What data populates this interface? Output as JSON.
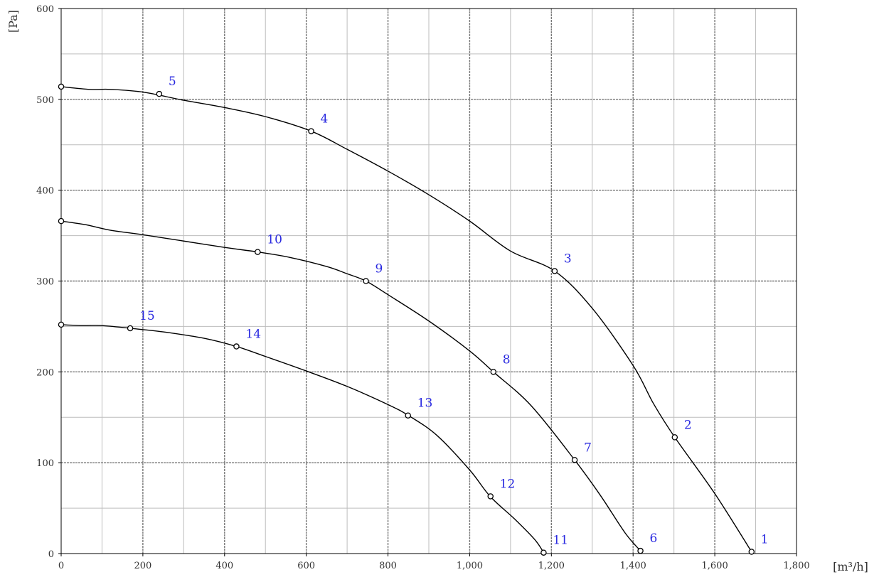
{
  "chart_data": {
    "type": "line",
    "xlabel": "[m³/h]",
    "ylabel": "[Pa]",
    "xlim": [
      0,
      1800
    ],
    "ylim": [
      0,
      600
    ],
    "x_major_ticks": [
      0,
      200,
      400,
      600,
      800,
      1000,
      1200,
      1400,
      1600,
      1800
    ],
    "x_tick_labels": [
      "0",
      "200",
      "400",
      "600",
      "800",
      "1,000",
      "1,200",
      "1,400",
      "1,600",
      "1,800"
    ],
    "y_major_ticks": [
      0,
      100,
      200,
      300,
      400,
      500,
      600
    ],
    "y_tick_labels": [
      "0",
      "100",
      "200",
      "300",
      "400",
      "500",
      "600"
    ],
    "grid": true,
    "series": [
      {
        "curve": [
          [
            0,
            514
          ],
          [
            70,
            511
          ],
          [
            120,
            511
          ],
          [
            200,
            508
          ],
          [
            300,
            499
          ],
          [
            400,
            491
          ],
          [
            500,
            481
          ],
          [
            612,
            465
          ],
          [
            700,
            445
          ],
          [
            800,
            421
          ],
          [
            900,
            395
          ],
          [
            1000,
            366
          ],
          [
            1100,
            333
          ],
          [
            1208,
            311
          ],
          [
            1300,
            270
          ],
          [
            1400,
            207
          ],
          [
            1450,
            165
          ],
          [
            1502,
            128
          ],
          [
            1600,
            66
          ],
          [
            1690,
            2
          ]
        ],
        "markers": [
          {
            "label": "1",
            "x": 1690,
            "y": 2
          },
          {
            "label": "2",
            "x": 1502,
            "y": 128
          },
          {
            "label": "3",
            "x": 1208,
            "y": 311
          },
          {
            "label": "4",
            "x": 612,
            "y": 465
          },
          {
            "label": "5",
            "x": 240,
            "y": 506
          }
        ],
        "start_marker": {
          "x": 0,
          "y": 514
        }
      },
      {
        "curve": [
          [
            0,
            366
          ],
          [
            60,
            362
          ],
          [
            120,
            356
          ],
          [
            200,
            351
          ],
          [
            300,
            344
          ],
          [
            400,
            337
          ],
          [
            481,
            332
          ],
          [
            560,
            326
          ],
          [
            650,
            316
          ],
          [
            700,
            308
          ],
          [
            746,
            300
          ],
          [
            800,
            285
          ],
          [
            900,
            256
          ],
          [
            1000,
            223
          ],
          [
            1058,
            200
          ],
          [
            1150,
            163
          ],
          [
            1257,
            103
          ],
          [
            1320,
            64
          ],
          [
            1380,
            23
          ],
          [
            1418,
            3
          ]
        ],
        "markers": [
          {
            "label": "6",
            "x": 1418,
            "y": 3
          },
          {
            "label": "7",
            "x": 1257,
            "y": 103
          },
          {
            "label": "8",
            "x": 1058,
            "y": 200
          },
          {
            "label": "9",
            "x": 746,
            "y": 300
          },
          {
            "label": "10",
            "x": 481,
            "y": 332
          }
        ],
        "start_marker": {
          "x": 0,
          "y": 366
        }
      },
      {
        "curve": [
          [
            0,
            252
          ],
          [
            50,
            251
          ],
          [
            100,
            251
          ],
          [
            169,
            248
          ],
          [
            250,
            244
          ],
          [
            350,
            237
          ],
          [
            429,
            228
          ],
          [
            500,
            217
          ],
          [
            600,
            201
          ],
          [
            700,
            184
          ],
          [
            800,
            164
          ],
          [
            850,
            152
          ],
          [
            920,
            130
          ],
          [
            1000,
            92
          ],
          [
            1050,
            63
          ],
          [
            1110,
            38
          ],
          [
            1160,
            15
          ],
          [
            1181,
            1
          ]
        ],
        "markers": [
          {
            "label": "11",
            "x": 1181,
            "y": 1
          },
          {
            "label": "12",
            "x": 1051,
            "y": 63
          },
          {
            "label": "13",
            "x": 849,
            "y": 152
          },
          {
            "label": "14",
            "x": 429,
            "y": 228
          },
          {
            "label": "15",
            "x": 169,
            "y": 248
          }
        ],
        "start_marker": {
          "x": 0,
          "y": 252
        }
      }
    ],
    "colors": {
      "curve": "#000000",
      "marker": "#000000",
      "point_label": "#2929e0",
      "grid_major": "#7a7a7a",
      "grid_minor": "#bdbdbd",
      "frame": "#000000"
    }
  }
}
